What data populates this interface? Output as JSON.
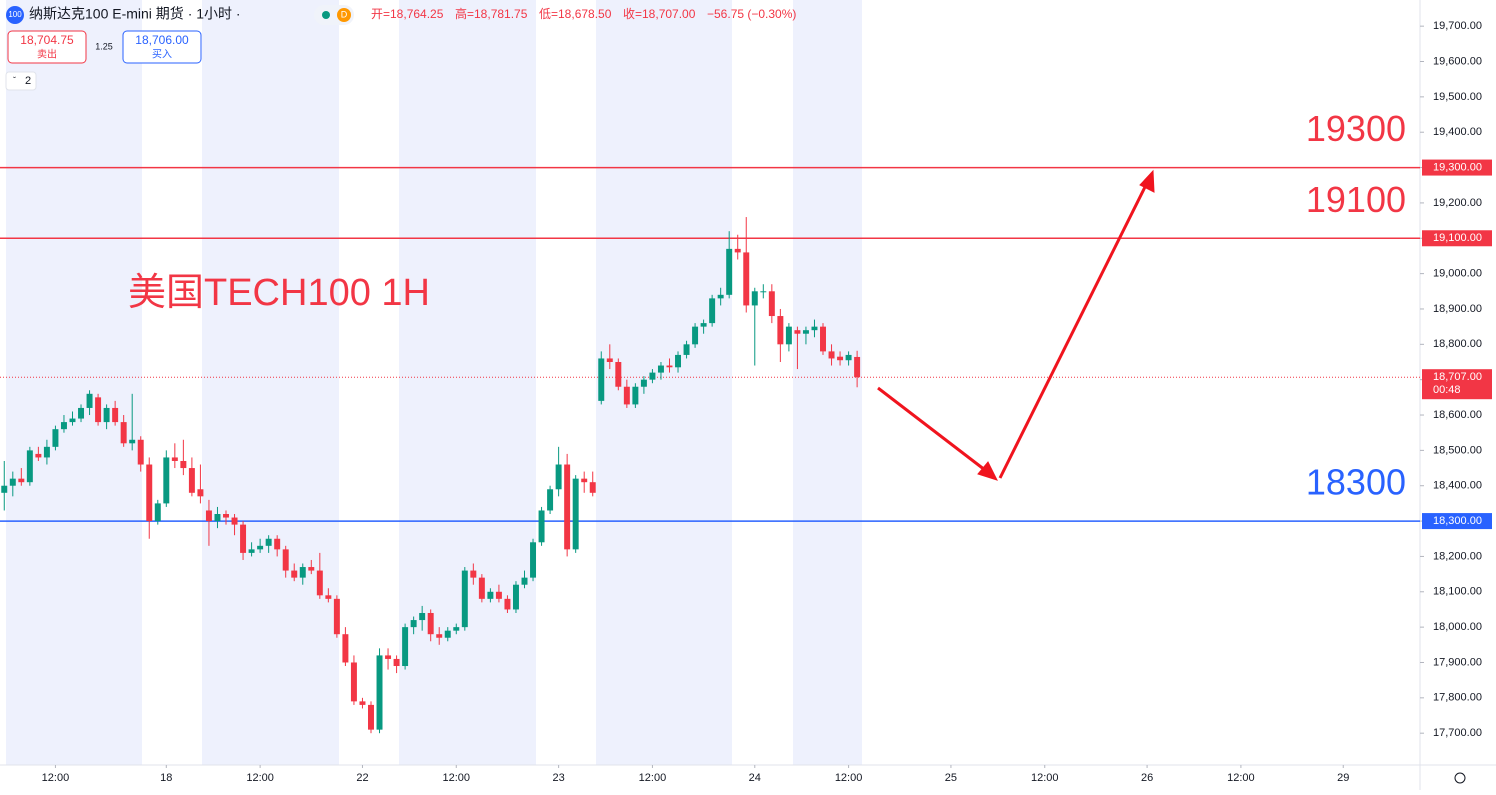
{
  "header": {
    "icon": "100",
    "symbol": "纳斯达克100 E-mini 期货 · 1小时 ·",
    "badge": "D",
    "ohlc": [
      "开=18,764.25",
      "高=18,781.75",
      "低=18,678.50",
      "收=18,707.00"
    ],
    "change": "−56.75 (−0.30%)"
  },
  "trade": {
    "sell_price": "18,704.75",
    "sell_label": "卖出",
    "spread": "1.25",
    "buy_price": "18,706.00",
    "buy_label": "买入"
  },
  "indicators": "2",
  "chart_data": {
    "type": "candlestick",
    "annotation": "美国TECH100 1H",
    "up_color": "#089981",
    "down_color": "#f23645",
    "open": [
      18380,
      18400,
      18420,
      18410,
      18490,
      18480,
      18510,
      18560,
      18580,
      18590,
      18620,
      18650,
      18580,
      18620,
      18580,
      18520,
      18530,
      18460,
      18300,
      18350,
      18480,
      18470,
      18450,
      18390,
      18330,
      18300,
      18320,
      18310,
      18290,
      18210,
      18220,
      18230,
      18250,
      18220,
      18160,
      18140,
      18170,
      18160,
      18090,
      18080,
      17980,
      17900,
      17790,
      17780,
      17710,
      17920,
      17910,
      17890,
      18000,
      18020,
      18040,
      17980,
      17970,
      17990,
      18000,
      18160,
      18140,
      18080,
      18100,
      18080,
      18050,
      18120,
      18140,
      18240,
      18330,
      18390,
      18460,
      18220,
      18420,
      18410,
      18640,
      18760,
      18750,
      18680,
      18630,
      18680,
      18700,
      18720,
      18740,
      18735,
      18770,
      18800,
      18850,
      18860,
      18930,
      18940,
      19070,
      19060,
      18910,
      18950,
      18950,
      18880,
      18800,
      18840,
      18830,
      18840,
      18850,
      18780,
      18765,
      18755,
      18764.25
    ],
    "high": [
      18470,
      18440,
      18450,
      18510,
      18510,
      18530,
      18570,
      18600,
      18610,
      18630,
      18670,
      18660,
      18630,
      18640,
      18600,
      18660,
      18540,
      18480,
      18360,
      18500,
      18520,
      18530,
      18480,
      18460,
      18360,
      18340,
      18330,
      18320,
      18300,
      18240,
      18250,
      18260,
      18260,
      18230,
      18180,
      18180,
      18190,
      18210,
      18110,
      18090,
      18000,
      17920,
      17800,
      17790,
      17940,
      17940,
      17920,
      18010,
      18030,
      18060,
      18050,
      18000,
      18000,
      18010,
      18170,
      18180,
      18150,
      18110,
      18120,
      18090,
      18130,
      18160,
      18250,
      18340,
      18400,
      18510,
      18490,
      18430,
      18440,
      18440,
      18780,
      18800,
      18760,
      18700,
      18690,
      18710,
      18730,
      18750,
      18760,
      18780,
      18810,
      18860,
      18870,
      18940,
      18960,
      19120,
      19110,
      19160,
      18960,
      18970,
      18970,
      18900,
      18860,
      18850,
      18850,
      18870,
      18860,
      18800,
      18780,
      18780,
      18781.75
    ],
    "low": [
      18330,
      18370,
      18400,
      18400,
      18470,
      18460,
      18500,
      18550,
      18570,
      18580,
      18600,
      18570,
      18560,
      18570,
      18510,
      18500,
      18440,
      18250,
      18290,
      18340,
      18450,
      18430,
      18370,
      18350,
      18230,
      18280,
      18290,
      18260,
      18190,
      18200,
      18210,
      18210,
      18200,
      18140,
      18130,
      18120,
      18150,
      18080,
      18070,
      17970,
      17890,
      17780,
      17770,
      17700,
      17700,
      17880,
      17870,
      17880,
      17980,
      17990,
      17960,
      17950,
      17960,
      17980,
      17990,
      18120,
      18070,
      18070,
      18070,
      18040,
      18040,
      18110,
      18130,
      18230,
      18320,
      18370,
      18200,
      18210,
      18380,
      18370,
      18630,
      18730,
      18670,
      18620,
      18620,
      18660,
      18690,
      18700,
      18720,
      18720,
      18760,
      18790,
      18830,
      18850,
      18910,
      18930,
      19040,
      18890,
      18740,
      18930,
      18860,
      18750,
      18780,
      18730,
      18800,
      18820,
      18770,
      18740,
      18740,
      18740,
      18678.5
    ],
    "close": [
      18400,
      18420,
      18410,
      18500,
      18480,
      18510,
      18560,
      18580,
      18590,
      18620,
      18660,
      18580,
      18620,
      18580,
      18520,
      18530,
      18460,
      18300,
      18350,
      18480,
      18470,
      18450,
      18380,
      18370,
      18300,
      18320,
      18310,
      18290,
      18210,
      18220,
      18230,
      18250,
      18220,
      18160,
      18140,
      18170,
      18160,
      18090,
      18080,
      17980,
      17900,
      17790,
      17780,
      17710,
      17920,
      17910,
      17890,
      18000,
      18020,
      18040,
      17980,
      17970,
      17990,
      18000,
      18160,
      18140,
      18080,
      18100,
      18080,
      18050,
      18120,
      18140,
      18240,
      18330,
      18390,
      18460,
      18220,
      18420,
      18410,
      18380,
      18760,
      18750,
      18680,
      18630,
      18680,
      18700,
      18720,
      18740,
      18735,
      18770,
      18800,
      18850,
      18860,
      18930,
      18940,
      19070,
      19060,
      18910,
      18950,
      18950,
      18880,
      18800,
      18850,
      18830,
      18840,
      18850,
      18780,
      18760,
      18755,
      18770,
      18707
    ],
    "hlines": [
      {
        "value": 19300,
        "color": "#f23645",
        "label": "19300",
        "tag": "19,300.00"
      },
      {
        "value": 19100,
        "color": "#f23645",
        "label": "19100",
        "tag": "19,100.00"
      },
      {
        "value": 18300,
        "color": "#2962ff",
        "label": "18300",
        "tag": "18,300.00"
      }
    ],
    "last_price": {
      "value": 18707,
      "tag": "18,707.00",
      "countdown": "00:48",
      "color": "#f23645"
    },
    "xlim": [
      -0.5,
      166
    ],
    "xticks": [
      {
        "value": 6,
        "label": "12:00"
      },
      {
        "value": 19,
        "label": "18"
      },
      {
        "value": 30,
        "label": "12:00"
      },
      {
        "value": 42,
        "label": "22"
      },
      {
        "value": 53,
        "label": "12:00"
      },
      {
        "value": 65,
        "label": "23"
      },
      {
        "value": 76,
        "label": "12:00"
      },
      {
        "value": 88,
        "label": "24"
      },
      {
        "value": 99,
        "label": "12:00"
      },
      {
        "value": 111,
        "label": "25"
      },
      {
        "value": 122,
        "label": "12:00"
      },
      {
        "value": 134,
        "label": "26"
      },
      {
        "value": 145,
        "label": "12:00"
      },
      {
        "value": 157,
        "label": "29"
      }
    ],
    "ylim": [
      17610,
      19774
    ],
    "yticks": [
      {
        "value": 17700,
        "label": "17,700.00"
      },
      {
        "value": 17800,
        "label": "17,800.00"
      },
      {
        "value": 17900,
        "label": "17,900.00"
      },
      {
        "value": 18000,
        "label": "18,000.00"
      },
      {
        "value": 18100,
        "label": "18,100.00"
      },
      {
        "value": 18200,
        "label": "18,200.00"
      },
      {
        "value": 18300,
        "label": "18,300.00"
      },
      {
        "value": 18400,
        "label": "18,400.00"
      },
      {
        "value": 18500,
        "label": "18,500.00"
      },
      {
        "value": 18600,
        "label": "18,600.00"
      },
      {
        "value": 18700,
        "label": "18,700.00"
      },
      {
        "value": 18800,
        "label": "18,800.00"
      },
      {
        "value": 18900,
        "label": "18,900.00"
      },
      {
        "value": 19000,
        "label": "19,000.00"
      },
      {
        "value": 19100,
        "label": "19,100.00"
      },
      {
        "value": 19200,
        "label": "19,200.00"
      },
      {
        "value": 19300,
        "label": "19,300.00"
      },
      {
        "value": 19400,
        "label": "19,400.00"
      },
      {
        "value": 19500,
        "label": "19,500.00"
      },
      {
        "value": 19600,
        "label": "19,600.00"
      },
      {
        "value": 19700,
        "label": "19,700.00"
      }
    ]
  }
}
